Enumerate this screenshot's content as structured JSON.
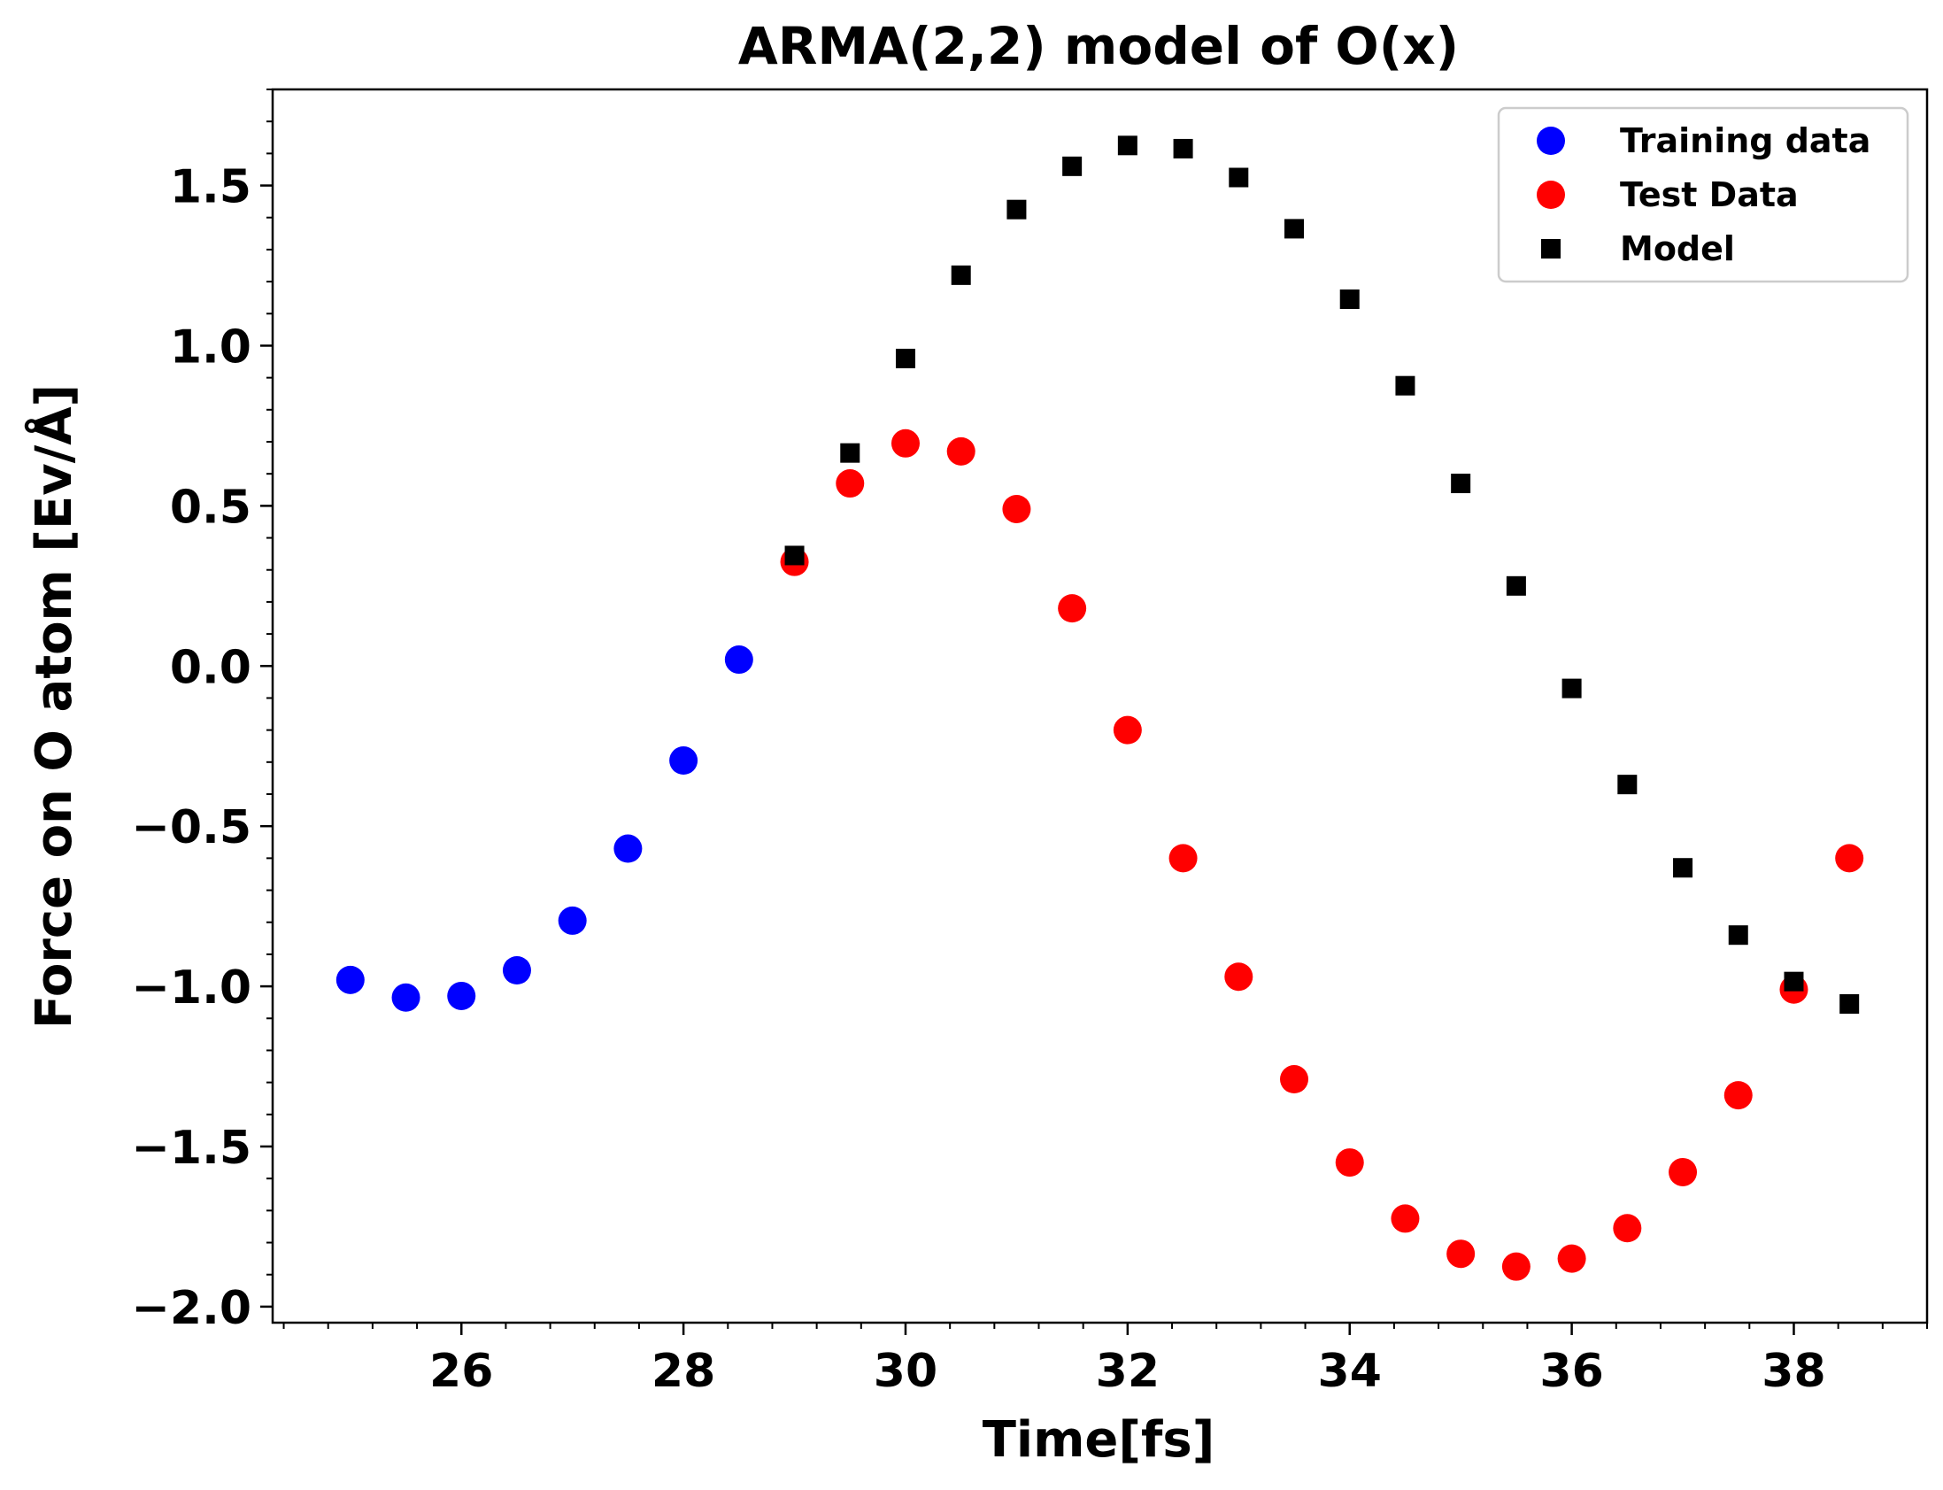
{
  "chart_data": {
    "type": "scatter",
    "title": "ARMA(2,2) model of O(x)",
    "xlabel": "Time[fs]",
    "ylabel": "Force on O atom [Ev/Å]",
    "xlim": [
      24.3,
      39.2
    ],
    "ylim": [
      -2.05,
      1.8
    ],
    "xticks": [
      26,
      28,
      30,
      32,
      34,
      36,
      38
    ],
    "xtick_labels": [
      "26",
      "28",
      "30",
      "32",
      "34",
      "36",
      "38"
    ],
    "yticks": [
      1.5,
      1.0,
      0.5,
      0.0,
      -0.5,
      -1.0,
      -1.5,
      -2.0
    ],
    "ytick_labels": [
      "1.5",
      "1.0",
      "0.5",
      "0.0",
      "−0.5",
      "−1.0",
      "−1.5",
      "−2.0"
    ],
    "grid": false,
    "legend_position": "top-right",
    "series": [
      {
        "name": "Training data",
        "marker": "circle",
        "color": "#0000ff",
        "x": [
          25.0,
          25.5,
          26.0,
          26.5,
          27.0,
          27.5,
          28.0,
          28.5
        ],
        "y": [
          -0.98,
          -1.035,
          -1.03,
          -0.95,
          -0.795,
          -0.57,
          -0.295,
          0.02
        ]
      },
      {
        "name": "Test Data",
        "marker": "circle",
        "color": "#ff0000",
        "x": [
          29.0,
          29.5,
          30.0,
          30.5,
          31.0,
          31.5,
          32.0,
          32.5,
          33.0,
          33.5,
          34.0,
          34.5,
          35.0,
          35.5,
          36.0,
          36.5,
          37.0,
          37.5,
          38.0,
          38.5
        ],
        "y": [
          0.325,
          0.57,
          0.695,
          0.67,
          0.49,
          0.18,
          -0.2,
          -0.6,
          -0.97,
          -1.29,
          -1.55,
          -1.725,
          -1.835,
          -1.875,
          -1.85,
          -1.755,
          -1.58,
          -1.34,
          -1.01,
          -0.6
        ]
      },
      {
        "name": "Model",
        "marker": "square",
        "color": "#000000",
        "x": [
          29.0,
          29.5,
          30.0,
          30.5,
          31.0,
          31.5,
          32.0,
          32.5,
          33.0,
          33.5,
          34.0,
          34.5,
          35.0,
          35.5,
          36.0,
          36.5,
          37.0,
          37.5,
          38.0,
          38.5
        ],
        "y": [
          0.345,
          0.665,
          0.96,
          1.22,
          1.425,
          1.56,
          1.625,
          1.615,
          1.525,
          1.365,
          1.145,
          0.875,
          0.57,
          0.25,
          -0.07,
          -0.37,
          -0.63,
          -0.84,
          -0.985,
          -1.055
        ]
      }
    ]
  }
}
